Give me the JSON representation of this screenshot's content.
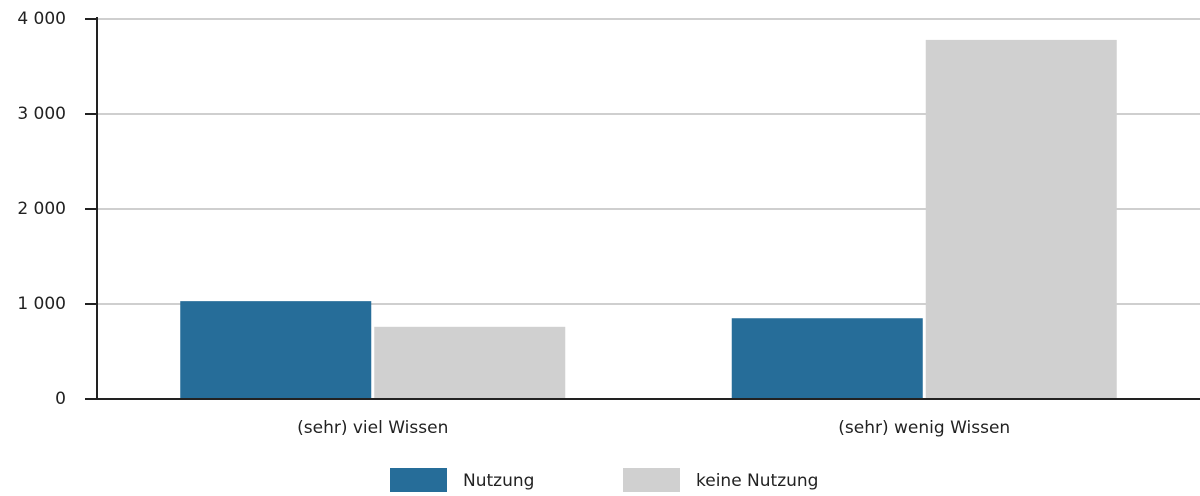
{
  "chart_data": {
    "type": "bar",
    "categories": [
      "(sehr) viel Wissen",
      "(sehr) wenig Wissen"
    ],
    "series": [
      {
        "name": "Nutzung",
        "color": "#266d99",
        "values": [
          1030,
          850
        ]
      },
      {
        "name": "keine Nutzung",
        "color": "#d0d0d0",
        "values": [
          760,
          3780
        ]
      }
    ],
    "ylim": [
      0,
      4000
    ],
    "yticks": [
      0,
      {
        "value": 1000,
        "label": "1 000"
      },
      {
        "value": 2000,
        "label": "2 000"
      },
      {
        "value": 3000,
        "label": "3 000"
      },
      {
        "value": 4000,
        "label": "4 000"
      }
    ],
    "grid": true,
    "legend": "bottom"
  }
}
